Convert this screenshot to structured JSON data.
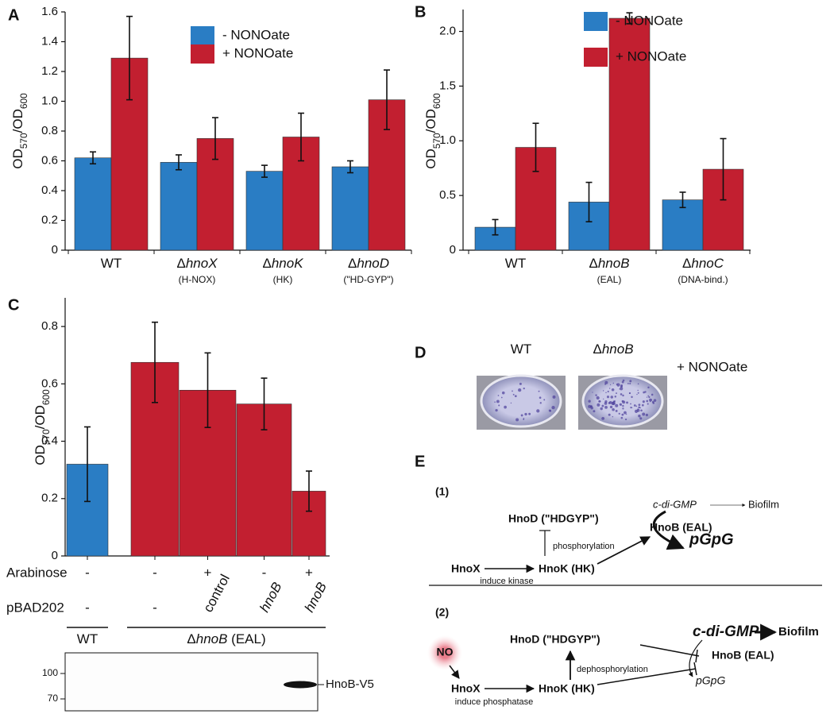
{
  "chart_data": [
    {
      "type": "bar",
      "panel": "A",
      "ylabel": "OD570/OD600",
      "categories": [
        "WT",
        "ΔhnoX",
        "ΔhnoK",
        "ΔhnoD"
      ],
      "category_notes": [
        null,
        "(H-NOX)",
        "(HK)",
        "(\"HD-GYP\")"
      ],
      "series": [
        {
          "name": "- NONOate",
          "color": "#2a7dc4",
          "values": [
            0.62,
            0.59,
            0.53,
            0.56
          ],
          "errors": [
            0.04,
            0.05,
            0.04,
            0.04
          ]
        },
        {
          "name": "+ NONOate",
          "color": "#c21f30",
          "values": [
            1.29,
            0.75,
            0.76,
            1.01
          ],
          "errors": [
            0.28,
            0.14,
            0.16,
            0.2
          ]
        }
      ],
      "ylim": [
        0,
        1.6
      ],
      "yticks": [
        0,
        0.2,
        0.4,
        0.6,
        0.8,
        {
          "value": 1,
          "label": "1.0"
        },
        1.2,
        1.4,
        1.6
      ],
      "legend": "top"
    },
    {
      "type": "bar",
      "panel": "B",
      "ylabel": "OD570/OD600",
      "categories": [
        "WT",
        "ΔhnoB",
        "ΔhnoC"
      ],
      "category_notes": [
        null,
        "(EAL)",
        "(DNA-bind.)"
      ],
      "series": [
        {
          "name": "- NONOate",
          "color": "#2a7dc4",
          "values": [
            0.21,
            0.44,
            0.46
          ],
          "errors": [
            0.07,
            0.18,
            0.07
          ]
        },
        {
          "name": "+ NONOate",
          "color": "#c21f30",
          "values": [
            0.94,
            2.12,
            0.74
          ],
          "errors": [
            0.22,
            0.05,
            0.28
          ]
        }
      ],
      "ylim": [
        0,
        2.2
      ],
      "yticks": [
        0,
        0.5,
        {
          "value": 1,
          "label": "1.0"
        },
        1.5,
        {
          "value": 2,
          "label": "2.0"
        }
      ],
      "legend": "top"
    },
    {
      "type": "single_bar",
      "panel": "C",
      "ylabel": "OD570/OD600",
      "values": [
        0.32,
        0.675,
        0.578,
        0.53,
        0.226
      ],
      "errors": [
        0.13,
        0.14,
        0.13,
        0.09,
        0.07
      ],
      "colors": [
        "#2a7dc4",
        "#c21f30",
        "#c21f30",
        "#c21f30",
        "#c21f30"
      ],
      "condition_rows": [
        {
          "label": "Arabinose",
          "values": [
            "-",
            "-",
            "+",
            "-",
            "+"
          ]
        },
        {
          "label": "pBAD202",
          "values": [
            "-",
            "-",
            "control",
            "hnoB",
            "hnoB"
          ]
        }
      ],
      "groups": [
        "WT",
        "ΔhnoB (EAL)"
      ],
      "blot": {
        "markers": [
          100,
          70
        ],
        "band_label": "HnoB-V5"
      },
      "ylim": [
        0,
        0.9
      ],
      "yticks": [
        0,
        0.2,
        0.4,
        0.6,
        0.8
      ]
    }
  ],
  "panel_d": {
    "label": "D",
    "strains": [
      "WT",
      "ΔhnoB"
    ],
    "condition": "+ NONOate"
  },
  "panel_e": {
    "label": "E",
    "model_1": {
      "label": "(1)",
      "hnod": "HnoD (\"HDGYP\")",
      "hnox": "HnoX",
      "hnok": "HnoK (HK)",
      "induce": "induce kinase",
      "modification": "phosphorylation",
      "cdigmp": "c-di-GMP",
      "biofilm": "Biofilm",
      "hnob": "HnoB (EAL)",
      "pgpg": "pGpG"
    },
    "model_2": {
      "label": "(2)",
      "no": "NO",
      "hnod": "HnoD (\"HDGYP\")",
      "hnox": "HnoX",
      "hnok": "HnoK (HK)",
      "induce": "induce phosphatase",
      "modification": "dephosphorylation",
      "cdigmp": "c-di-GMP",
      "biofilm": "Biofilm",
      "hnob": "HnoB (EAL)",
      "pgpg": "pGpG"
    }
  }
}
